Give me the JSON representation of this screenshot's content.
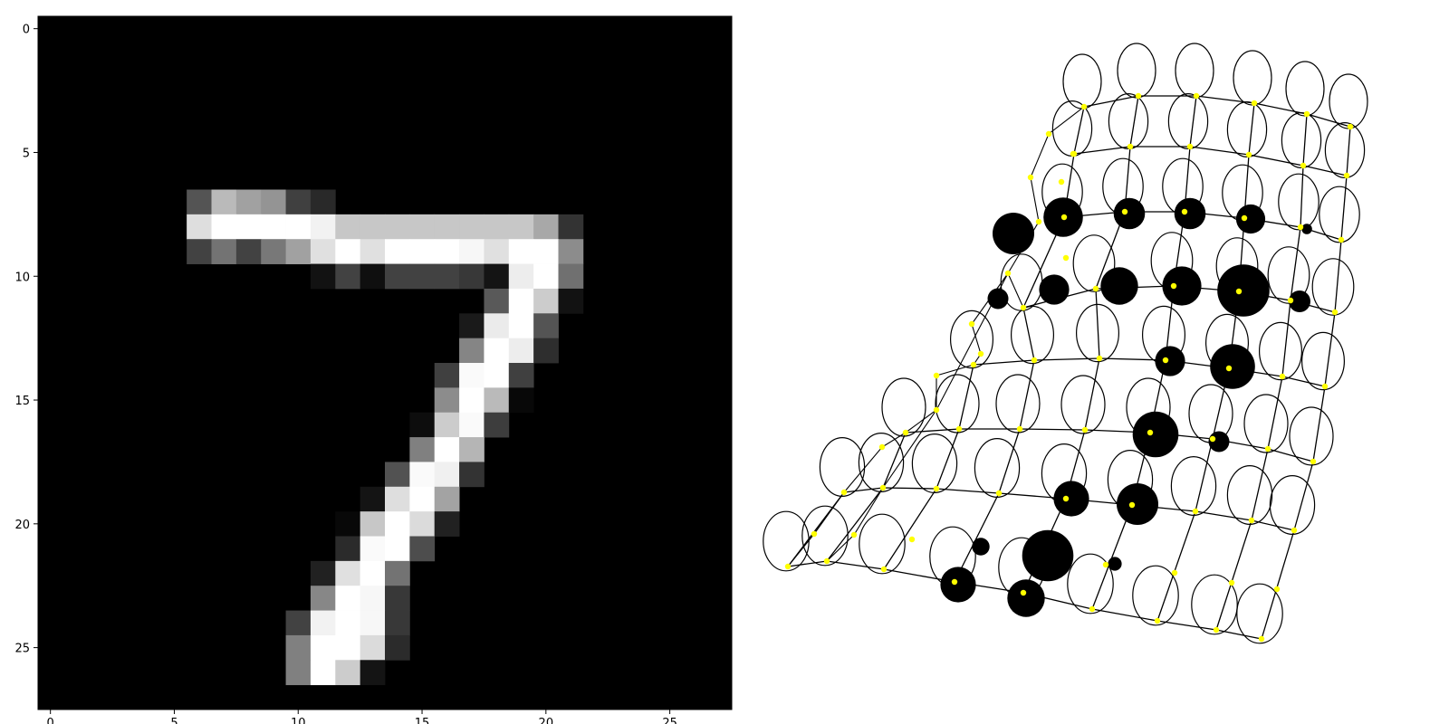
{
  "chart_data": [
    {
      "type": "heatmap",
      "colormap": "gray",
      "xticks": [
        "0",
        "5",
        "10",
        "15",
        "20",
        "25"
      ],
      "yticks": [
        "0",
        "5",
        "10",
        "15",
        "20",
        "25"
      ],
      "xlim": [
        -0.5,
        27.5
      ],
      "ylim": [
        27.5,
        -0.5
      ],
      "pixels": [
        {
          "row": 7,
          "col": 6,
          "v": 0.33
        },
        {
          "row": 7,
          "col": 7,
          "v": 0.73
        },
        {
          "row": 7,
          "col": 8,
          "v": 0.63
        },
        {
          "row": 7,
          "col": 9,
          "v": 0.58
        },
        {
          "row": 7,
          "col": 10,
          "v": 0.25
        },
        {
          "row": 7,
          "col": 11,
          "v": 0.16
        },
        {
          "row": 8,
          "col": 6,
          "v": 0.87
        },
        {
          "row": 8,
          "col": 7,
          "v": 1.0
        },
        {
          "row": 8,
          "col": 8,
          "v": 1.0
        },
        {
          "row": 8,
          "col": 9,
          "v": 1.0
        },
        {
          "row": 8,
          "col": 10,
          "v": 1.0
        },
        {
          "row": 8,
          "col": 11,
          "v": 0.95
        },
        {
          "row": 8,
          "col": 12,
          "v": 0.78
        },
        {
          "row": 8,
          "col": 13,
          "v": 0.78
        },
        {
          "row": 8,
          "col": 14,
          "v": 0.78
        },
        {
          "row": 8,
          "col": 15,
          "v": 0.78
        },
        {
          "row": 8,
          "col": 16,
          "v": 0.78
        },
        {
          "row": 8,
          "col": 17,
          "v": 0.78
        },
        {
          "row": 8,
          "col": 18,
          "v": 0.78
        },
        {
          "row": 8,
          "col": 19,
          "v": 0.78
        },
        {
          "row": 8,
          "col": 20,
          "v": 0.66
        },
        {
          "row": 8,
          "col": 21,
          "v": 0.2
        },
        {
          "row": 9,
          "col": 6,
          "v": 0.26
        },
        {
          "row": 9,
          "col": 7,
          "v": 0.45
        },
        {
          "row": 9,
          "col": 8,
          "v": 0.26
        },
        {
          "row": 9,
          "col": 9,
          "v": 0.47
        },
        {
          "row": 9,
          "col": 10,
          "v": 0.63
        },
        {
          "row": 9,
          "col": 11,
          "v": 0.88
        },
        {
          "row": 9,
          "col": 12,
          "v": 1.0
        },
        {
          "row": 9,
          "col": 13,
          "v": 0.88
        },
        {
          "row": 9,
          "col": 14,
          "v": 1.0
        },
        {
          "row": 9,
          "col": 15,
          "v": 1.0
        },
        {
          "row": 9,
          "col": 16,
          "v": 1.0
        },
        {
          "row": 9,
          "col": 17,
          "v": 0.97
        },
        {
          "row": 9,
          "col": 18,
          "v": 0.88
        },
        {
          "row": 9,
          "col": 19,
          "v": 1.0
        },
        {
          "row": 9,
          "col": 20,
          "v": 1.0
        },
        {
          "row": 9,
          "col": 21,
          "v": 0.55
        },
        {
          "row": 10,
          "col": 11,
          "v": 0.07
        },
        {
          "row": 10,
          "col": 12,
          "v": 0.26
        },
        {
          "row": 10,
          "col": 13,
          "v": 0.06
        },
        {
          "row": 10,
          "col": 14,
          "v": 0.26
        },
        {
          "row": 10,
          "col": 15,
          "v": 0.26
        },
        {
          "row": 10,
          "col": 16,
          "v": 0.26
        },
        {
          "row": 10,
          "col": 17,
          "v": 0.22
        },
        {
          "row": 10,
          "col": 18,
          "v": 0.08
        },
        {
          "row": 10,
          "col": 19,
          "v": 0.93
        },
        {
          "row": 10,
          "col": 20,
          "v": 1.0
        },
        {
          "row": 10,
          "col": 21,
          "v": 0.44
        },
        {
          "row": 11,
          "col": 18,
          "v": 0.35
        },
        {
          "row": 11,
          "col": 19,
          "v": 1.0
        },
        {
          "row": 11,
          "col": 20,
          "v": 0.8
        },
        {
          "row": 11,
          "col": 21,
          "v": 0.07
        },
        {
          "row": 12,
          "col": 17,
          "v": 0.1
        },
        {
          "row": 12,
          "col": 18,
          "v": 0.92
        },
        {
          "row": 12,
          "col": 19,
          "v": 1.0
        },
        {
          "row": 12,
          "col": 20,
          "v": 0.33
        },
        {
          "row": 13,
          "col": 17,
          "v": 0.52
        },
        {
          "row": 13,
          "col": 18,
          "v": 1.0
        },
        {
          "row": 13,
          "col": 19,
          "v": 0.93
        },
        {
          "row": 13,
          "col": 20,
          "v": 0.18
        },
        {
          "row": 14,
          "col": 16,
          "v": 0.25
        },
        {
          "row": 14,
          "col": 17,
          "v": 0.98
        },
        {
          "row": 14,
          "col": 18,
          "v": 1.0
        },
        {
          "row": 14,
          "col": 19,
          "v": 0.25
        },
        {
          "row": 15,
          "col": 16,
          "v": 0.55
        },
        {
          "row": 15,
          "col": 17,
          "v": 1.0
        },
        {
          "row": 15,
          "col": 18,
          "v": 0.73
        },
        {
          "row": 15,
          "col": 19,
          "v": 0.03
        },
        {
          "row": 16,
          "col": 15,
          "v": 0.05
        },
        {
          "row": 16,
          "col": 16,
          "v": 0.8
        },
        {
          "row": 16,
          "col": 17,
          "v": 0.98
        },
        {
          "row": 16,
          "col": 18,
          "v": 0.24
        },
        {
          "row": 17,
          "col": 15,
          "v": 0.5
        },
        {
          "row": 17,
          "col": 16,
          "v": 1.0
        },
        {
          "row": 17,
          "col": 17,
          "v": 0.71
        },
        {
          "row": 18,
          "col": 14,
          "v": 0.32
        },
        {
          "row": 18,
          "col": 15,
          "v": 0.98
        },
        {
          "row": 18,
          "col": 16,
          "v": 0.94
        },
        {
          "row": 18,
          "col": 17,
          "v": 0.2
        },
        {
          "row": 19,
          "col": 13,
          "v": 0.08
        },
        {
          "row": 19,
          "col": 14,
          "v": 0.87
        },
        {
          "row": 19,
          "col": 15,
          "v": 1.0
        },
        {
          "row": 19,
          "col": 16,
          "v": 0.64
        },
        {
          "row": 20,
          "col": 12,
          "v": 0.03
        },
        {
          "row": 20,
          "col": 13,
          "v": 0.78
        },
        {
          "row": 20,
          "col": 14,
          "v": 1.0
        },
        {
          "row": 20,
          "col": 15,
          "v": 0.86
        },
        {
          "row": 20,
          "col": 16,
          "v": 0.13
        },
        {
          "row": 21,
          "col": 12,
          "v": 0.17
        },
        {
          "row": 21,
          "col": 13,
          "v": 0.98
        },
        {
          "row": 21,
          "col": 14,
          "v": 1.0
        },
        {
          "row": 21,
          "col": 15,
          "v": 0.3
        },
        {
          "row": 22,
          "col": 11,
          "v": 0.13
        },
        {
          "row": 22,
          "col": 12,
          "v": 0.88
        },
        {
          "row": 22,
          "col": 13,
          "v": 1.0
        },
        {
          "row": 22,
          "col": 14,
          "v": 0.45
        },
        {
          "row": 23,
          "col": 11,
          "v": 0.53
        },
        {
          "row": 23,
          "col": 12,
          "v": 1.0
        },
        {
          "row": 23,
          "col": 13,
          "v": 0.97
        },
        {
          "row": 23,
          "col": 14,
          "v": 0.22
        },
        {
          "row": 24,
          "col": 10,
          "v": 0.26
        },
        {
          "row": 24,
          "col": 11,
          "v": 0.95
        },
        {
          "row": 24,
          "col": 12,
          "v": 1.0
        },
        {
          "row": 24,
          "col": 13,
          "v": 0.97
        },
        {
          "row": 24,
          "col": 14,
          "v": 0.22
        },
        {
          "row": 25,
          "col": 10,
          "v": 0.5
        },
        {
          "row": 25,
          "col": 11,
          "v": 1.0
        },
        {
          "row": 25,
          "col": 12,
          "v": 1.0
        },
        {
          "row": 25,
          "col": 13,
          "v": 0.86
        },
        {
          "row": 25,
          "col": 14,
          "v": 0.17
        },
        {
          "row": 26,
          "col": 10,
          "v": 0.5
        },
        {
          "row": 26,
          "col": 11,
          "v": 1.0
        },
        {
          "row": 26,
          "col": 12,
          "v": 0.8
        },
        {
          "row": 26,
          "col": 13,
          "v": 0.08
        }
      ]
    },
    {
      "type": "scatter",
      "colors": {
        "node_marker": "#ffff00",
        "line": "#000000",
        "blob": "#000000"
      },
      "receptor_field_ellipses": "outlined ellipse centered on each grid node",
      "grid_rows": [
        [
          [
            1197,
            118
          ],
          [
            1257,
            106
          ],
          [
            1321,
            106
          ],
          [
            1385,
            114
          ],
          [
            1443,
            126
          ],
          [
            1491,
            140
          ]
        ],
        [
          [
            1186,
            170
          ],
          [
            1248,
            162
          ],
          [
            1314,
            162
          ],
          [
            1379,
            171
          ],
          [
            1439,
            183
          ],
          [
            1487,
            194
          ]
        ],
        [
          [
            1175,
            240
          ],
          [
            1242,
            234
          ],
          [
            1308,
            234
          ],
          [
            1374,
            241
          ],
          [
            1436,
            251
          ],
          [
            1481,
            265
          ]
        ],
        [
          [
            1130,
            340
          ],
          [
            1210,
            319
          ],
          [
            1296,
            316
          ],
          [
            1368,
            322
          ],
          [
            1425,
            332
          ],
          [
            1474,
            345
          ]
        ],
        [
          [
            1075,
            403
          ],
          [
            1142,
            398
          ],
          [
            1214,
            396
          ],
          [
            1287,
            398
          ],
          [
            1357,
            407
          ],
          [
            1416,
            416
          ],
          [
            1463,
            427
          ]
        ],
        [
          [
            1000,
            478
          ],
          [
            1059,
            474
          ],
          [
            1126,
            474
          ],
          [
            1198,
            475
          ],
          [
            1270,
            478
          ],
          [
            1339,
            485
          ],
          [
            1400,
            496
          ],
          [
            1450,
            510
          ]
        ],
        [
          [
            932,
            544
          ],
          [
            975,
            539
          ],
          [
            1034,
            540
          ],
          [
            1103,
            545
          ],
          [
            1177,
            551
          ],
          [
            1250,
            558
          ],
          [
            1320,
            565
          ],
          [
            1382,
            575
          ],
          [
            1429,
            586
          ]
        ],
        [
          [
            870,
            626
          ],
          [
            913,
            620
          ],
          [
            976,
            629
          ],
          [
            1054,
            643
          ],
          [
            1130,
            655
          ],
          [
            1206,
            673
          ],
          [
            1278,
            686
          ],
          [
            1343,
            696
          ],
          [
            1393,
            706
          ]
        ]
      ],
      "extra_nodes": [
        [
          1158,
          148
        ],
        [
          1138,
          196
        ],
        [
          1147,
          245
        ],
        [
          1113,
          302
        ],
        [
          1177,
          285
        ],
        [
          1073,
          358
        ],
        [
          1083,
          391
        ],
        [
          1034,
          415
        ],
        [
          1034,
          453
        ],
        [
          974,
          494
        ],
        [
          899,
          590
        ],
        [
          943,
          591
        ],
        [
          1007,
          596
        ],
        [
          1221,
          624
        ],
        [
          1297,
          633
        ],
        [
          1360,
          644
        ],
        [
          1410,
          651
        ],
        [
          1172,
          201
        ],
        [
          1185,
          170
        ]
      ],
      "blobs": [
        {
          "x": 1119,
          "y": 258,
          "size": 1.0
        },
        {
          "x": 1174,
          "y": 240,
          "size": 0.95
        },
        {
          "x": 1247,
          "y": 236,
          "size": 0.75
        },
        {
          "x": 1314,
          "y": 236,
          "size": 0.75
        },
        {
          "x": 1381,
          "y": 242,
          "size": 0.7
        },
        {
          "x": 1443,
          "y": 253,
          "size": 0.25
        },
        {
          "x": 1102,
          "y": 330,
          "size": 0.5
        },
        {
          "x": 1164,
          "y": 320,
          "size": 0.72
        },
        {
          "x": 1236,
          "y": 316,
          "size": 0.9
        },
        {
          "x": 1305,
          "y": 316,
          "size": 0.94
        },
        {
          "x": 1373,
          "y": 321,
          "size": 1.25
        },
        {
          "x": 1435,
          "y": 333,
          "size": 0.52
        },
        {
          "x": 1292,
          "y": 399,
          "size": 0.72
        },
        {
          "x": 1361,
          "y": 405,
          "size": 1.08
        },
        {
          "x": 1276,
          "y": 480,
          "size": 1.1
        },
        {
          "x": 1346,
          "y": 488,
          "size": 0.5
        },
        {
          "x": 1183,
          "y": 551,
          "size": 0.85
        },
        {
          "x": 1256,
          "y": 557,
          "size": 1.0
        },
        {
          "x": 1083,
          "y": 604,
          "size": 0.42
        },
        {
          "x": 1157,
          "y": 614,
          "size": 1.23
        },
        {
          "x": 1231,
          "y": 623,
          "size": 0.33
        },
        {
          "x": 1058,
          "y": 646,
          "size": 0.85
        },
        {
          "x": 1133,
          "y": 661,
          "size": 0.9
        }
      ]
    }
  ]
}
